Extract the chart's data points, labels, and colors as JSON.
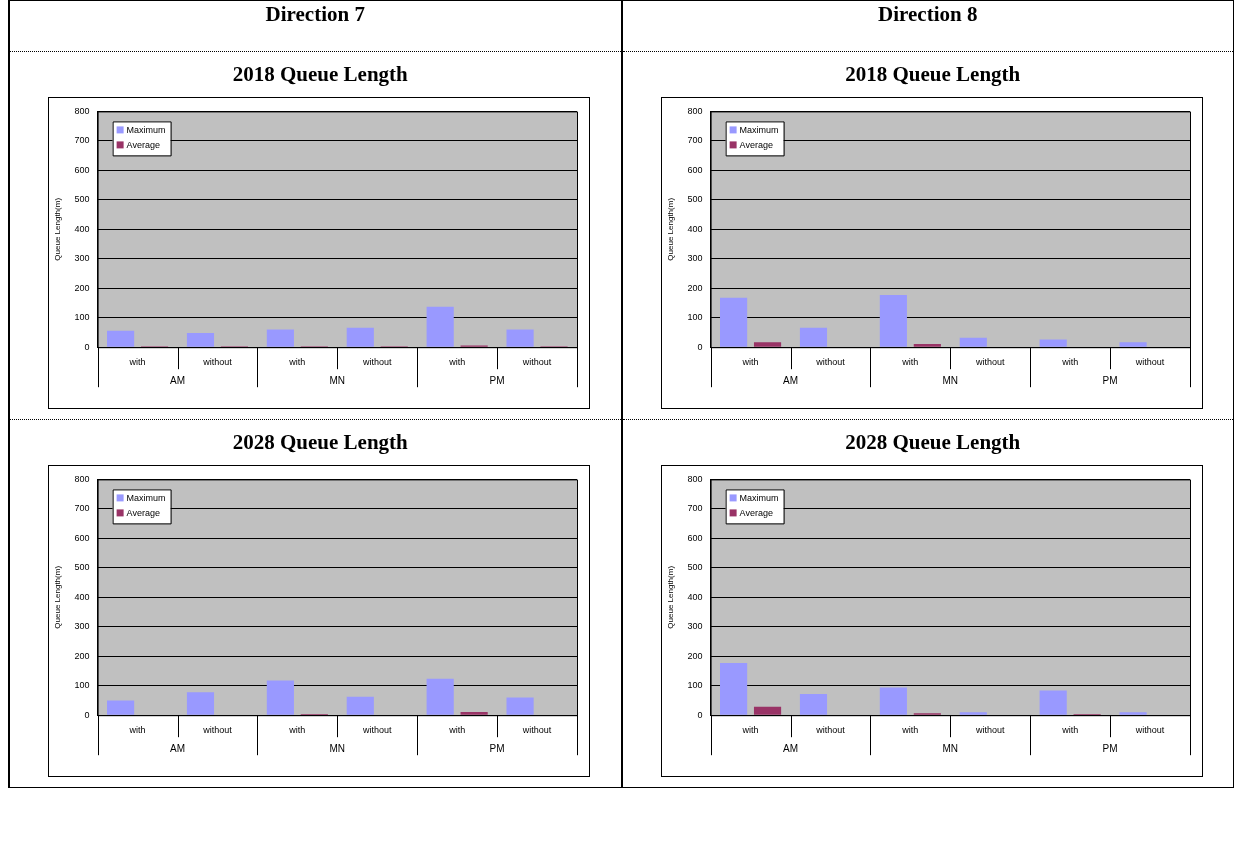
{
  "chart_data": [
    {
      "type": "bar",
      "subtitle": "Direction 7",
      "title": "2018 Queue Length",
      "ylabel": "Queue Length(m)",
      "categories": [
        "with",
        "without",
        "with",
        "without",
        "with",
        "without"
      ],
      "annotations": [
        "AM",
        "MN",
        "PM"
      ],
      "series": [
        {
          "name": "Maximum",
          "color": "#9999ff",
          "values": [
            56,
            48,
            60,
            66,
            137,
            60
          ]
        },
        {
          "name": "Average",
          "color": "#993366",
          "values": [
            3,
            3,
            3,
            3,
            6,
            3
          ]
        }
      ],
      "ylim": [
        0,
        800
      ],
      "yticks": [
        0,
        100,
        200,
        300,
        400,
        500,
        600,
        700,
        800
      ],
      "grid": "y",
      "legend": "top left"
    },
    {
      "type": "bar",
      "subtitle": "Direction 8",
      "title": "2018 Queue Length",
      "ylabel": "Queue Length(m)",
      "categories": [
        "with",
        "without",
        "with",
        "without",
        "with",
        "without"
      ],
      "annotations": [
        "AM",
        "MN",
        "PM"
      ],
      "series": [
        {
          "name": "Maximum",
          "color": "#9999ff",
          "values": [
            168,
            66,
            177,
            32,
            26,
            17
          ]
        },
        {
          "name": "Average",
          "color": "#993366",
          "values": [
            17,
            0,
            11,
            0,
            0,
            0
          ]
        }
      ],
      "ylim": [
        0,
        800
      ],
      "yticks": [
        0,
        100,
        200,
        300,
        400,
        500,
        600,
        700,
        800
      ],
      "grid": "y",
      "legend": "top left"
    },
    {
      "type": "bar",
      "title": "2028 Queue Length",
      "ylabel": "Queue Length(m)",
      "categories": [
        "with",
        "without",
        "with",
        "without",
        "with",
        "without"
      ],
      "annotations": [
        "AM",
        "MN",
        "PM"
      ],
      "series": [
        {
          "name": "Maximum",
          "color": "#9999ff",
          "values": [
            50,
            78,
            118,
            63,
            124,
            60
          ]
        },
        {
          "name": "Average",
          "color": "#993366",
          "values": [
            0,
            0,
            4,
            0,
            11,
            0
          ]
        }
      ],
      "ylim": [
        0,
        800
      ],
      "yticks": [
        0,
        100,
        200,
        300,
        400,
        500,
        600,
        700,
        800
      ],
      "grid": "y",
      "legend": "top left"
    },
    {
      "type": "bar",
      "title": "2028 Queue Length",
      "ylabel": "Queue Length(m)",
      "categories": [
        "with",
        "without",
        "with",
        "without",
        "with",
        "without"
      ],
      "annotations": [
        "AM",
        "MN",
        "PM"
      ],
      "series": [
        {
          "name": "Maximum",
          "color": "#9999ff",
          "values": [
            177,
            72,
            94,
            10,
            84,
            10
          ]
        },
        {
          "name": "Average",
          "color": "#993366",
          "values": [
            29,
            0,
            7,
            0,
            4,
            0
          ]
        }
      ],
      "ylim": [
        0,
        800
      ],
      "yticks": [
        0,
        100,
        200,
        300,
        400,
        500,
        600,
        700,
        800
      ],
      "grid": "y",
      "legend": "top left"
    }
  ]
}
